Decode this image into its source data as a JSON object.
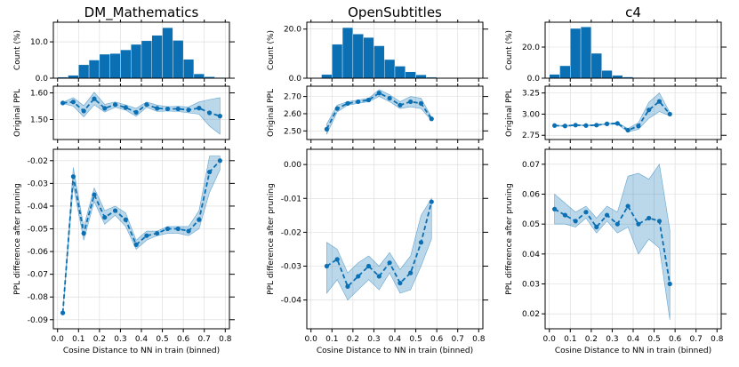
{
  "chart_data": [
    {
      "type": "bar",
      "title": "DM_Mathematics",
      "ylabel": "Count (%)",
      "xlim": [
        -0.02,
        0.82
      ],
      "ylim": [
        0,
        15.4
      ],
      "yticks": [
        0.0,
        10.0
      ],
      "bin_width": 0.05,
      "bin_starts": [
        0.0,
        0.05,
        0.1,
        0.15,
        0.2,
        0.25,
        0.3,
        0.35,
        0.4,
        0.45,
        0.5,
        0.55,
        0.6,
        0.65,
        0.7,
        0.75
      ],
      "values": [
        0.3,
        0.8,
        3.7,
        5.0,
        6.6,
        6.8,
        7.8,
        9.3,
        10.3,
        11.8,
        13.9,
        10.4,
        5.2,
        1.2,
        0.4,
        0.2
      ]
    },
    {
      "type": "line",
      "ylabel": "Original PPL",
      "xlim": [
        -0.02,
        0.82
      ],
      "ylim": [
        1.425,
        1.625
      ],
      "yticks": [
        1.5,
        1.6
      ],
      "x": [
        0.025,
        0.075,
        0.125,
        0.175,
        0.225,
        0.275,
        0.325,
        0.375,
        0.425,
        0.475,
        0.525,
        0.575,
        0.625,
        0.675,
        0.725,
        0.775
      ],
      "values": [
        1.562,
        1.566,
        1.532,
        1.578,
        1.542,
        1.556,
        1.545,
        1.527,
        1.556,
        1.542,
        1.54,
        1.54,
        1.536,
        1.543,
        1.525,
        1.513
      ],
      "lower": [
        1.56,
        1.55,
        1.51,
        1.555,
        1.528,
        1.546,
        1.535,
        1.512,
        1.546,
        1.53,
        1.532,
        1.53,
        1.525,
        1.52,
        1.475,
        1.445
      ],
      "upper": [
        1.564,
        1.582,
        1.552,
        1.602,
        1.557,
        1.566,
        1.555,
        1.542,
        1.566,
        1.554,
        1.548,
        1.55,
        1.547,
        1.566,
        1.575,
        1.582
      ]
    },
    {
      "type": "line",
      "xlabel": "Cosine Distance to NN in train (binned)",
      "ylabel": "PPL difference after pruning",
      "xlim": [
        -0.02,
        0.82
      ],
      "ylim": [
        -0.094,
        -0.015
      ],
      "yticks": [
        -0.09,
        -0.08,
        -0.07,
        -0.06,
        -0.05,
        -0.04,
        -0.03,
        -0.02
      ],
      "xticks": [
        0.0,
        0.1,
        0.2,
        0.3,
        0.4,
        0.5,
        0.6,
        0.7,
        0.8
      ],
      "x": [
        0.025,
        0.075,
        0.125,
        0.175,
        0.225,
        0.275,
        0.325,
        0.375,
        0.425,
        0.475,
        0.525,
        0.575,
        0.625,
        0.675,
        0.725,
        0.775
      ],
      "values": [
        -0.087,
        -0.027,
        -0.052,
        -0.035,
        -0.045,
        -0.042,
        -0.046,
        -0.057,
        -0.053,
        -0.052,
        -0.05,
        -0.05,
        -0.051,
        -0.046,
        -0.025,
        -0.02
      ],
      "lower": [
        -0.087,
        -0.031,
        -0.055,
        -0.038,
        -0.048,
        -0.044,
        -0.049,
        -0.059,
        -0.055,
        -0.053,
        -0.052,
        -0.052,
        -0.053,
        -0.05,
        -0.034,
        -0.024
      ],
      "upper": [
        -0.087,
        -0.023,
        -0.049,
        -0.032,
        -0.042,
        -0.04,
        -0.043,
        -0.055,
        -0.051,
        -0.051,
        -0.049,
        -0.049,
        -0.049,
        -0.042,
        -0.018,
        -0.018
      ]
    },
    {
      "type": "bar",
      "title": "OpenSubtitles",
      "ylabel": "Count (%)",
      "xlim": [
        -0.02,
        0.82
      ],
      "ylim": [
        0,
        22.8
      ],
      "yticks": [
        0.0,
        20.0
      ],
      "bin_width": 0.05,
      "bin_starts": [
        0.05,
        0.1,
        0.15,
        0.2,
        0.25,
        0.3,
        0.35,
        0.4,
        0.45,
        0.5,
        0.55
      ],
      "values": [
        1.5,
        13.8,
        20.6,
        18.0,
        16.6,
        13.2,
        7.6,
        4.9,
        2.6,
        1.4,
        0.4
      ]
    },
    {
      "type": "line",
      "ylabel": "Original PPL",
      "xlim": [
        -0.02,
        0.82
      ],
      "ylim": [
        2.45,
        2.76
      ],
      "yticks": [
        2.5,
        2.6,
        2.7
      ],
      "x": [
        0.075,
        0.125,
        0.175,
        0.225,
        0.275,
        0.325,
        0.375,
        0.425,
        0.475,
        0.525,
        0.575
      ],
      "values": [
        2.51,
        2.63,
        2.66,
        2.67,
        2.68,
        2.72,
        2.69,
        2.65,
        2.67,
        2.66,
        2.57
      ],
      "lower": [
        2.48,
        2.61,
        2.65,
        2.66,
        2.67,
        2.7,
        2.67,
        2.63,
        2.64,
        2.63,
        2.56
      ],
      "upper": [
        2.54,
        2.65,
        2.67,
        2.68,
        2.69,
        2.74,
        2.71,
        2.67,
        2.7,
        2.69,
        2.58
      ]
    },
    {
      "type": "line",
      "xlabel": "Cosine Distance to NN in train (binned)",
      "ylabel": "PPL difference after pruning",
      "xlim": [
        -0.02,
        0.82
      ],
      "ylim": [
        -0.0485,
        0.0045
      ],
      "yticks": [
        -0.04,
        -0.03,
        -0.02,
        -0.01,
        0.0
      ],
      "xticks": [
        0.0,
        0.1,
        0.2,
        0.3,
        0.4,
        0.5,
        0.6,
        0.7,
        0.8
      ],
      "x": [
        0.075,
        0.125,
        0.175,
        0.225,
        0.275,
        0.325,
        0.375,
        0.425,
        0.475,
        0.525,
        0.575
      ],
      "values": [
        -0.03,
        -0.028,
        -0.036,
        -0.033,
        -0.03,
        -0.033,
        -0.029,
        -0.035,
        -0.032,
        -0.023,
        -0.011
      ],
      "lower": [
        -0.038,
        -0.034,
        -0.04,
        -0.037,
        -0.034,
        -0.037,
        -0.032,
        -0.038,
        -0.037,
        -0.03,
        -0.022
      ],
      "upper": [
        -0.023,
        -0.025,
        -0.032,
        -0.029,
        -0.027,
        -0.03,
        -0.026,
        -0.031,
        -0.027,
        -0.015,
        -0.01
      ]
    },
    {
      "type": "bar",
      "title": "c4",
      "ylabel": "Count (%)",
      "xlim": [
        -0.02,
        0.82
      ],
      "ylim": [
        0,
        36
      ],
      "yticks": [
        0.0,
        20.0
      ],
      "bin_width": 0.05,
      "bin_starts": [
        0.0,
        0.05,
        0.1,
        0.15,
        0.2,
        0.25,
        0.3,
        0.35,
        0.4,
        0.45,
        0.5,
        0.55
      ],
      "values": [
        2.5,
        8.0,
        32.0,
        33.0,
        16.0,
        5.0,
        1.8,
        0.8,
        0.4,
        0.2,
        0.1,
        0.05
      ]
    },
    {
      "type": "line",
      "ylabel": "Original PPL",
      "xlim": [
        -0.02,
        0.82
      ],
      "ylim": [
        2.7,
        3.33
      ],
      "yticks": [
        2.75,
        3.0,
        3.25
      ],
      "x": [
        0.025,
        0.075,
        0.125,
        0.175,
        0.225,
        0.275,
        0.325,
        0.375,
        0.425,
        0.475,
        0.525,
        0.575
      ],
      "values": [
        2.865,
        2.86,
        2.87,
        2.865,
        2.87,
        2.885,
        2.89,
        2.81,
        2.86,
        3.05,
        3.15,
        3.0
      ],
      "lower": [
        2.86,
        2.855,
        2.865,
        2.86,
        2.865,
        2.88,
        2.88,
        2.79,
        2.82,
        2.95,
        3.03,
        2.98
      ],
      "upper": [
        2.87,
        2.865,
        2.875,
        2.87,
        2.875,
        2.89,
        2.9,
        2.83,
        2.9,
        3.14,
        3.25,
        3.02
      ]
    },
    {
      "type": "line",
      "xlabel": "Cosine Distance to NN in train (binned)",
      "ylabel": "PPL difference after pruning",
      "xlim": [
        -0.02,
        0.82
      ],
      "ylim": [
        0.015,
        0.075
      ],
      "yticks": [
        0.02,
        0.03,
        0.04,
        0.05,
        0.06,
        0.07
      ],
      "xticks": [
        0.0,
        0.1,
        0.2,
        0.3,
        0.4,
        0.5,
        0.6,
        0.7,
        0.8
      ],
      "x": [
        0.025,
        0.075,
        0.125,
        0.175,
        0.225,
        0.275,
        0.325,
        0.375,
        0.425,
        0.475,
        0.525,
        0.575
      ],
      "values": [
        0.055,
        0.053,
        0.051,
        0.054,
        0.049,
        0.053,
        0.05,
        0.056,
        0.05,
        0.052,
        0.051,
        0.03
      ],
      "lower": [
        0.05,
        0.05,
        0.049,
        0.052,
        0.047,
        0.051,
        0.047,
        0.049,
        0.04,
        0.045,
        0.042,
        0.018
      ],
      "upper": [
        0.06,
        0.057,
        0.054,
        0.056,
        0.052,
        0.056,
        0.054,
        0.066,
        0.067,
        0.065,
        0.07,
        0.048
      ]
    }
  ]
}
